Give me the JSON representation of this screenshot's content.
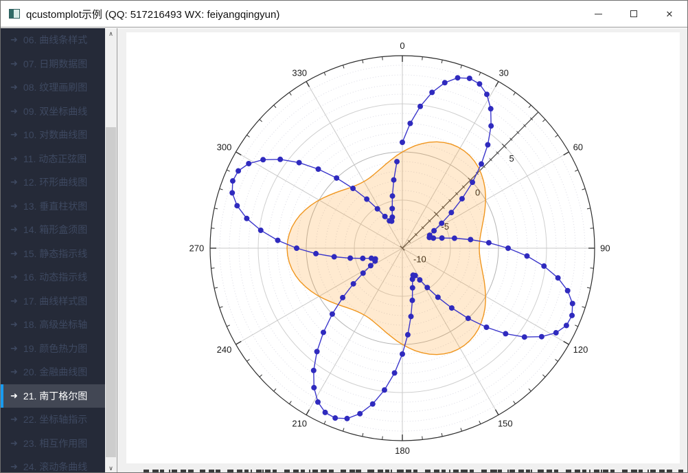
{
  "window": {
    "title": "qcustomplot示例 (QQ: 517216493 WX: feiyangqingyun)",
    "controls": {
      "minimize": "minimize",
      "maximize": "maximize",
      "close": "close"
    }
  },
  "sidebar": {
    "items": [
      {
        "label": "06. 曲线条样式",
        "selected": false
      },
      {
        "label": "07. 日期数据图",
        "selected": false
      },
      {
        "label": "08. 纹理画刷图",
        "selected": false
      },
      {
        "label": "09. 双坐标曲线",
        "selected": false
      },
      {
        "label": "10. 对数曲线图",
        "selected": false
      },
      {
        "label": "11. 动态正弦图",
        "selected": false
      },
      {
        "label": "12. 环形曲线图",
        "selected": false
      },
      {
        "label": "13. 垂直柱状图",
        "selected": false
      },
      {
        "label": "14. 箱形盒须图",
        "selected": false
      },
      {
        "label": "15. 静态指示线",
        "selected": false
      },
      {
        "label": "16. 动态指示线",
        "selected": false
      },
      {
        "label": "17. 曲线样式图",
        "selected": false
      },
      {
        "label": "18. 高级坐标轴",
        "selected": false
      },
      {
        "label": "19. 颜色热力图",
        "selected": false
      },
      {
        "label": "20. 金融曲线图",
        "selected": false
      },
      {
        "label": "21. 南丁格尔图",
        "selected": true
      },
      {
        "label": "22. 坐标轴指示",
        "selected": false
      },
      {
        "label": "23. 相互作用图",
        "selected": false
      },
      {
        "label": "24. 滚动条曲线",
        "selected": false
      }
    ],
    "arrow_glyph": "➜",
    "scrollbar": {
      "up_glyph": "∧",
      "down_glyph": "∨"
    }
  },
  "chart_data": {
    "type": "polar-line",
    "title": "",
    "angular_axis": {
      "range_deg": [
        0,
        360
      ],
      "direction": "clockwise, 0 at top",
      "major_tick_step_deg": 30,
      "minor_tick_step_deg": 6,
      "tick_labels": [
        "0",
        "30",
        "60",
        "90",
        "120",
        "150",
        "180",
        "210",
        "240",
        "270",
        "300",
        "330"
      ]
    },
    "radial_axis": {
      "range": [
        -10,
        10
      ],
      "axis_angle_deg": 45,
      "major_tick_step": 5,
      "minor_tick_step": 1,
      "tick_labels": [
        {
          "value": -10,
          "label": "-10"
        },
        {
          "value": -5,
          "label": "-5"
        },
        {
          "value": 0,
          "label": "0"
        },
        {
          "value": 5,
          "label": "5"
        }
      ]
    },
    "grid": {
      "spoke_color": "#c8c8c8",
      "ring_major_color": "#cfcfcf",
      "ring_zero_color": "#b4b4b4",
      "ring_minor_dotted_color": "#d9d9e3",
      "outer_circle_color": "#2b2b2b"
    },
    "series": [
      {
        "name": "graph2-orange",
        "formula": "r = 2*sin(3*theta)",
        "line_color": "#f0961e",
        "fill_color": "rgba(255,150,20,0.20)",
        "scatter": "none",
        "theta_start_deg": 0,
        "theta_step_deg": 3.6,
        "r": [
          0.0,
          0.37,
          0.74,
          1.07,
          1.37,
          1.62,
          1.81,
          1.94,
          2.0,
          1.98,
          1.9,
          1.75,
          1.54,
          1.27,
          0.96,
          0.62,
          0.25,
          -0.13,
          -0.5,
          -0.85,
          -1.18,
          -1.46,
          -1.69,
          -1.86,
          -1.96,
          -2.0,
          -1.96,
          -1.86,
          -1.69,
          -1.46,
          -1.18,
          -0.85,
          -0.5,
          -0.13,
          0.25,
          0.62,
          0.96,
          1.27,
          1.54,
          1.75,
          1.9,
          1.98,
          2.0,
          1.94,
          1.81,
          1.62,
          1.37,
          1.07,
          0.74,
          0.37,
          0.0,
          -0.37,
          -0.74,
          -1.07,
          -1.37,
          -1.62,
          -1.81,
          -1.94,
          -2.0,
          -1.98,
          -1.9,
          -1.75,
          -1.54,
          -1.27,
          -0.96,
          -0.62,
          -0.25,
          0.13,
          0.5,
          0.85,
          1.18,
          1.46,
          1.69,
          1.86,
          1.96,
          2.0,
          1.96,
          1.86,
          1.69,
          1.46,
          1.18,
          0.85,
          0.5,
          0.13,
          -0.25,
          -0.62,
          -0.96,
          -1.27,
          -1.54,
          -1.75,
          -1.9,
          -1.98,
          -2.0,
          -1.94,
          -1.81,
          -1.62,
          -1.37,
          -1.07,
          -0.74,
          -0.37
        ],
        "closed": true
      },
      {
        "name": "graph1-blue",
        "formula": "r = 8*sin(4*theta) + 1",
        "line_color": "#3a35cb",
        "point_color": "#2f2abe",
        "scatter": "disc",
        "point_radius": 4,
        "theta_start_deg": 0,
        "theta_step_deg": 3.6,
        "r": [
          1.0,
          2.99,
          4.85,
          6.48,
          7.75,
          8.61,
          8.98,
          8.86,
          8.24,
          7.16,
          5.7,
          3.94,
          2.0,
          0.0,
          -1.94,
          -3.7,
          -5.16,
          -6.24,
          -6.86,
          -6.98,
          -6.61,
          -5.75,
          -4.48,
          -2.85,
          -0.99,
          1.0,
          2.99,
          4.85,
          6.48,
          7.75,
          8.61,
          8.98,
          8.86,
          8.24,
          7.16,
          5.7,
          3.94,
          2.0,
          0.0,
          -1.94,
          -3.7,
          -5.16,
          -6.24,
          -6.86,
          -6.98,
          -6.61,
          -5.75,
          -4.48,
          -2.85,
          -0.99,
          1.0,
          2.99,
          4.85,
          6.48,
          7.75,
          8.61,
          8.98,
          8.86,
          8.24,
          7.16,
          5.7,
          3.94,
          2.0,
          0.0,
          -1.94,
          -3.7,
          -5.16,
          -6.24,
          -6.86,
          -6.98,
          -6.61,
          -5.75,
          -4.48,
          -2.85,
          -0.99,
          1.0,
          2.99,
          4.85,
          6.48,
          7.75,
          8.61,
          8.98,
          8.86,
          8.24,
          7.16,
          5.7,
          3.94,
          2.0,
          0.0,
          -1.94,
          -3.7,
          -5.16,
          -6.24,
          -6.86,
          -6.98,
          -6.61,
          -5.75,
          -4.48,
          -2.85,
          -0.99
        ],
        "closed": false
      }
    ],
    "legend": "none"
  }
}
